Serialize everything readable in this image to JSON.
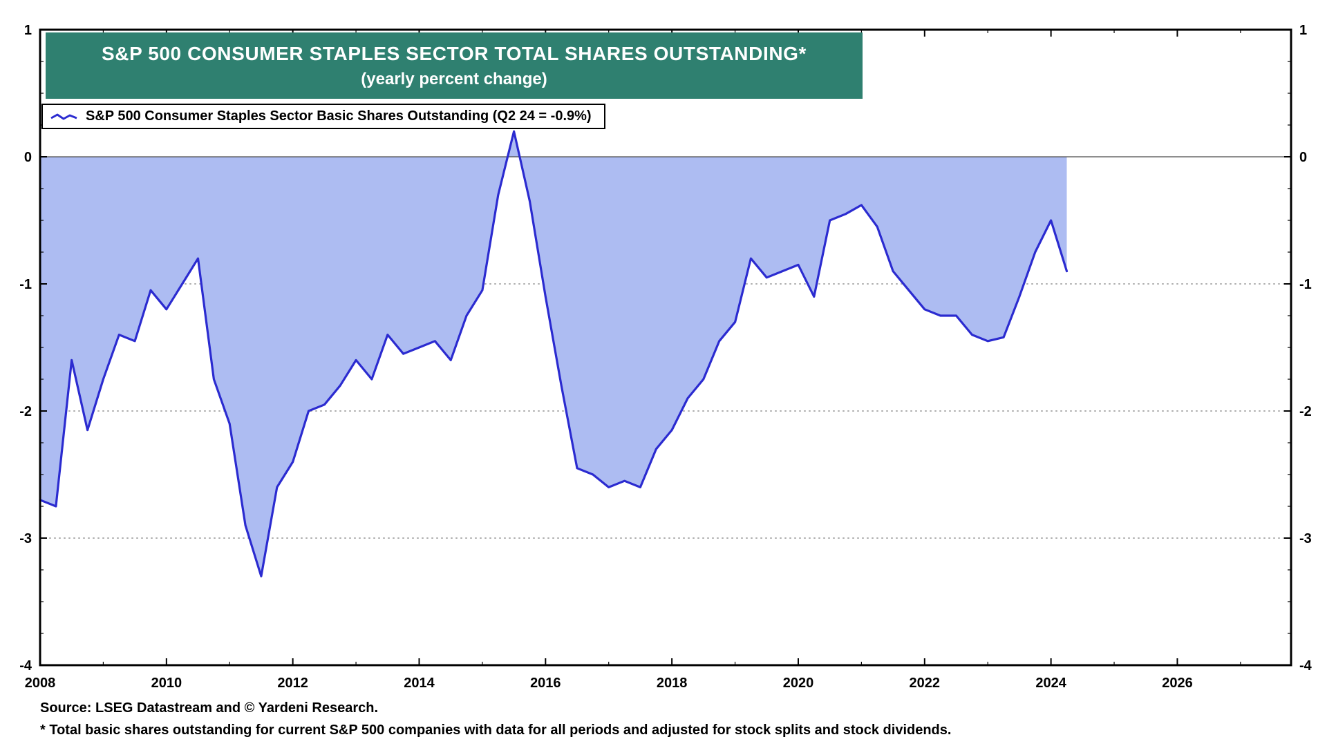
{
  "title": {
    "line1": "S&P 500 CONSUMER STAPLES SECTOR TOTAL SHARES OUTSTANDING*",
    "line2": "(yearly percent change)"
  },
  "legend": {
    "label": "S&P 500 Consumer Staples Sector Basic Shares Outstanding (Q2 24 = -0.9%)"
  },
  "footer": {
    "source": "Source: LSEG Datastream and © Yardeni Research.",
    "footnote": "* Total basic shares outstanding for current S&P 500 companies with data for all periods and adjusted for stock splits and stock dividends."
  },
  "colors": {
    "title_bg": "#2F8070",
    "title_text": "#FFFFFF",
    "line": "#2B2BD0",
    "fill": "#ADBCF2",
    "grid": "#ACACAC",
    "zero_line": "#4A4A4A",
    "frame": "#000000",
    "text": "#000000"
  },
  "chart_data": {
    "type": "area",
    "title": "S&P 500 CONSUMER STAPLES SECTOR TOTAL SHARES OUTSTANDING* (yearly percent change)",
    "series_name": "S&P 500 Consumer Staples Sector Basic Shares Outstanding",
    "unit": "yearly percent change",
    "latest_label": "Q2 24 = -0.9%",
    "x_frequency": "quarterly",
    "x_start": 2008.0,
    "x_step": 0.25,
    "values": [
      -2.7,
      -2.75,
      -1.6,
      -2.15,
      -1.75,
      -1.4,
      -1.45,
      -1.05,
      -1.2,
      -1.0,
      -0.8,
      -1.75,
      -2.1,
      -2.9,
      -3.3,
      -2.6,
      -2.4,
      -2.0,
      -1.95,
      -1.8,
      -1.6,
      -1.75,
      -1.4,
      -1.55,
      -1.5,
      -1.45,
      -1.6,
      -1.25,
      -1.05,
      -0.3,
      0.2,
      -0.35,
      -1.1,
      -1.8,
      -2.45,
      -2.5,
      -2.6,
      -2.55,
      -2.6,
      -2.3,
      -2.15,
      -1.9,
      -1.75,
      -1.45,
      -1.3,
      -0.8,
      -0.95,
      -0.9,
      -0.85,
      -1.1,
      -0.5,
      -0.45,
      -0.38,
      -0.55,
      -0.9,
      -1.05,
      -1.2,
      -1.25,
      -1.25,
      -1.4,
      -1.45,
      -1.42,
      -1.1,
      -0.75,
      -0.5,
      -0.9
    ],
    "xlim": [
      2008,
      2027.8
    ],
    "ylim": [
      -4,
      1
    ],
    "xticks": [
      2008,
      2010,
      2012,
      2014,
      2016,
      2018,
      2020,
      2022,
      2024,
      2026
    ],
    "yticks": [
      1,
      0,
      -1,
      -2,
      -3,
      -4
    ],
    "grid": "dotted-horizontal",
    "legend_position": "top-left"
  }
}
